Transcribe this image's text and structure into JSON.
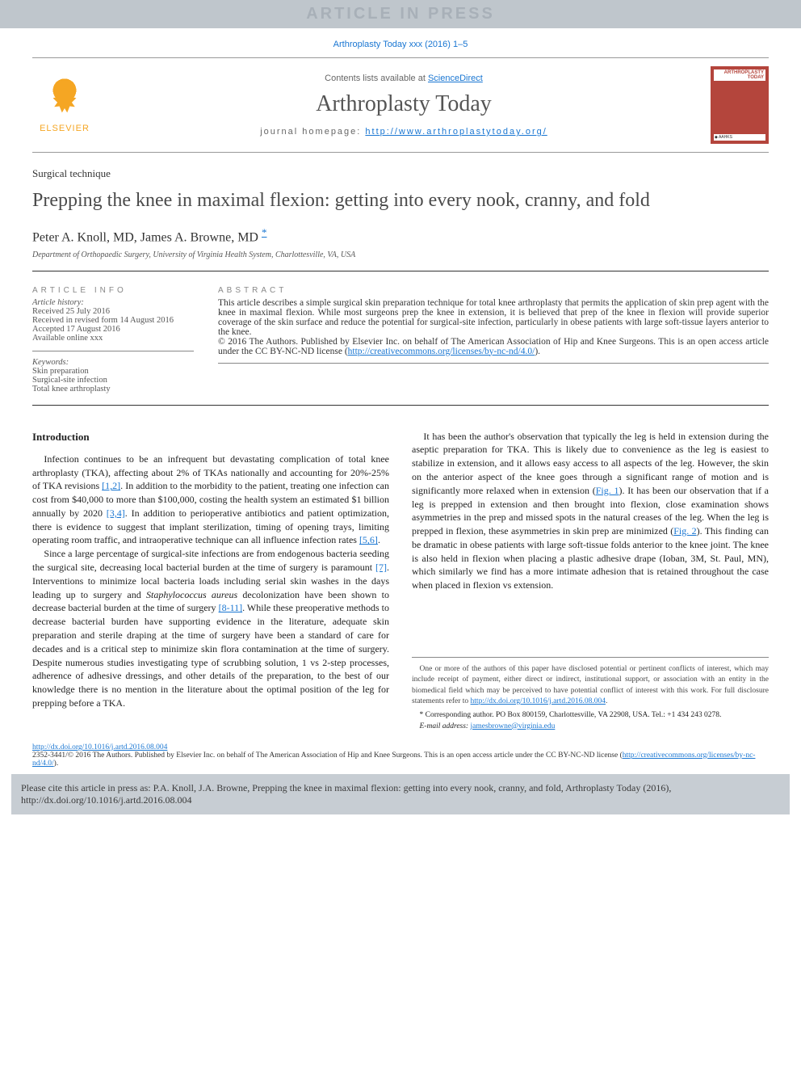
{
  "banner": {
    "text": "ARTICLE IN PRESS"
  },
  "topCitation": "Arthroplasty Today xxx (2016) 1–5",
  "header": {
    "publisherName": "ELSEVIER",
    "contentsPrefix": "Contents lists available at ",
    "contentsLink": "ScienceDirect",
    "journalName": "Arthroplasty Today",
    "homepagePrefix": "journal homepage: ",
    "homepageUrl": "http://www.arthroplastytoday.org/",
    "coverTitle": "ARTHROPLASTY TODAY",
    "coverFooter": "◆ AAHKS"
  },
  "article": {
    "sectionType": "Surgical technique",
    "title": "Prepping the knee in maximal flexion: getting into every nook, cranny, and fold",
    "authors": "Peter A. Knoll, MD, James A. Browne, MD ",
    "corrMark": "*",
    "affiliation": "Department of Orthopaedic Surgery, University of Virginia Health System, Charlottesville, VA, USA"
  },
  "info": {
    "header": "ARTICLE INFO",
    "historyLabel": "Article history:",
    "received": "Received 25 July 2016",
    "revised": "Received in revised form 14 August 2016",
    "accepted": "Accepted 17 August 2016",
    "online": "Available online xxx",
    "keywordsLabel": "Keywords:",
    "kw1": "Skin preparation",
    "kw2": "Surgical-site infection",
    "kw3": "Total knee arthroplasty"
  },
  "abstract": {
    "header": "ABSTRACT",
    "body": "This article describes a simple surgical skin preparation technique for total knee arthroplasty that permits the application of skin prep agent with the knee in maximal flexion. While most surgeons prep the knee in extension, it is believed that prep of the knee in flexion will provide superior coverage of the skin surface and reduce the potential for surgical-site infection, particularly in obese patients with large soft-tissue layers anterior to the knee.",
    "copyright": "© 2016 The Authors. Published by Elsevier Inc. on behalf of The American Association of Hip and Knee Surgeons. This is an open access article under the CC BY-NC-ND license (",
    "licenseUrl": "http://creativecommons.org/licenses/by-nc-nd/4.0/",
    "copyrightClose": ")."
  },
  "body": {
    "introHeading": "Introduction",
    "p1a": "Infection continues to be an infrequent but devastating complication of total knee arthroplasty (TKA), affecting about 2% of TKAs nationally and accounting for 20%-25% of TKA revisions ",
    "ref12": "[1,2]",
    "p1b": ". In addition to the morbidity to the patient, treating one infection can cost from $40,000 to more than $100,000, costing the health system an estimated $1 billion annually by 2020 ",
    "ref34": "[3,4]",
    "p1c": ". In addition to perioperative antibiotics and patient optimization, there is evidence to suggest that implant sterilization, timing of opening trays, limiting operating room traffic, and intraoperative technique can all influence infection rates ",
    "ref56": "[5,6]",
    "p1d": ".",
    "p2a": "Since a large percentage of surgical-site infections are from endogenous bacteria seeding the surgical site, decreasing local bacterial burden at the time of surgery is paramount ",
    "ref7": "[7]",
    "p2b": ". Interventions to minimize local bacteria loads including serial skin washes in the days leading up to surgery and ",
    "staph": "Staphylococcus aureus",
    "p3a": "decolonization have been shown to decrease bacterial burden at the time of surgery ",
    "ref811": "[8-11]",
    "p3b": ". While these preoperative methods to decrease bacterial burden have supporting evidence in the literature, adequate skin preparation and sterile draping at the time of surgery have been a standard of care for decades and is a critical step to minimize skin flora contamination at the time of surgery. Despite numerous studies investigating type of scrubbing solution, 1 vs 2-step processes, adherence of adhesive dressings, and other details of the preparation, to the best of our knowledge there is no mention in the literature about the optimal position of the leg for prepping before a TKA.",
    "p4a": "It has been the author's observation that typically the leg is held in extension during the aseptic preparation for TKA. This is likely due to convenience as the leg is easiest to stabilize in extension, and it allows easy access to all aspects of the leg. However, the skin on the anterior aspect of the knee goes through a significant range of motion and is significantly more relaxed when in extension (",
    "fig1": "Fig. 1",
    "p4b": "). It has been our observation that if a leg is prepped in extension and then brought into flexion, close examination shows asymmetries in the prep and missed spots in the natural creases of the leg. When the leg is prepped in flexion, these asymmetries in skin prep are minimized (",
    "fig2": "Fig. 2",
    "p4c": "). This finding can be dramatic in obese patients with large soft-tissue folds anterior to the knee joint. The knee is also held in flexion when placing a plastic adhesive drape (Ioban, 3M, St. Paul, MN), which similarly we find has a more intimate adhesion that is retained throughout the case when placed in flexion vs extension."
  },
  "footnotes": {
    "conflict": "One or more of the authors of this paper have disclosed potential or pertinent conflicts of interest, which may include receipt of payment, either direct or indirect, institutional support, or association with an entity in the biomedical field which may be perceived to have potential conflict of interest with this work. For full disclosure statements refer to ",
    "conflictUrl": "http://dx.doi.org/10.1016/j.artd.2016.08.004",
    "conflictEnd": ".",
    "correspLabel": "* Corresponding author. PO Box 800159, Charlottesville, VA 22908, USA. Tel.: +1 434 243 0278.",
    "emailLabel": "E-mail address: ",
    "email": "jamesbrowne@virginia.edu"
  },
  "footer": {
    "doi": "http://dx.doi.org/10.1016/j.artd.2016.08.004",
    "issnLine": "2352-3441/© 2016 The Authors. Published by Elsevier Inc. on behalf of The American Association of Hip and Knee Surgeons. This is an open access article under the CC BY-NC-ND license (",
    "licenseUrl": "http://creativecommons.org/licenses/by-nc-nd/4.0/",
    "issnClose": ")."
  },
  "citeBox": {
    "text": "Please cite this article in press as: P.A. Knoll, J.A. Browne, Prepping the knee in maximal flexion: getting into every nook, cranny, and fold, Arthroplasty Today (2016), http://dx.doi.org/10.1016/j.artd.2016.08.004"
  },
  "colors": {
    "link": "#1976d2",
    "bannerBg": "#bfc6cc",
    "coverBg": "#b4453c",
    "elsevierOrange": "#f5a623",
    "citeBoxBg": "#c7cdd3"
  }
}
